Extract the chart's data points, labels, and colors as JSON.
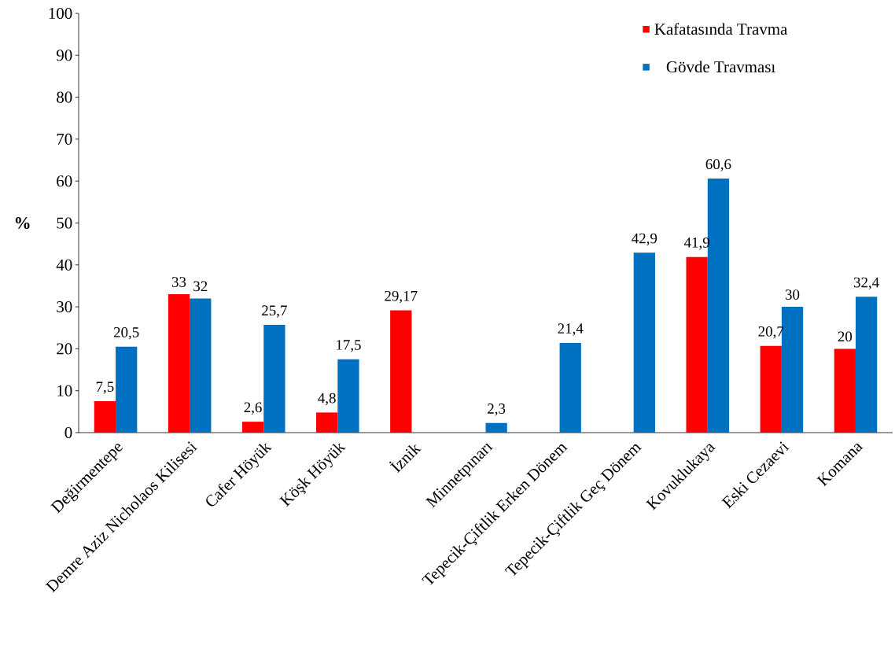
{
  "chart_data": {
    "type": "bar",
    "ylabel": "%",
    "categories": [
      "Değirmentepe",
      "Demre Aziz Nicholaos Kilisesi",
      "Cafer Höyük",
      "Köşk Höyük",
      "İznik",
      "Minnetpınarı",
      "Tepecik-Çiftlik Erken Dönem",
      "Tepecik-Çiftlik Geç Dönem",
      "Kovuklukaya",
      "Eski Cezaevi",
      "Komana"
    ],
    "series": [
      {
        "name": "Kafatasında Travma",
        "color": "#ff0000",
        "values": [
          7.5,
          33,
          2.6,
          4.8,
          29.17,
          null,
          null,
          null,
          41.9,
          20.7,
          20
        ],
        "value_labels": [
          "7,5",
          "33",
          "2,6",
          "4,8",
          "29,17",
          null,
          null,
          null,
          "41,9",
          "20,7",
          "20"
        ]
      },
      {
        "name": "Gövde Travması",
        "color": "#0070c0",
        "values": [
          20.5,
          32,
          25.7,
          17.5,
          null,
          2.3,
          21.4,
          42.9,
          60.6,
          30,
          32.4
        ],
        "value_labels": [
          "20,5",
          "32",
          "25,7",
          "17,5",
          null,
          "2,3",
          "21,4",
          "42,9",
          "60,6",
          "30",
          "32,4"
        ]
      }
    ],
    "ylim": [
      0,
      100
    ],
    "yticks": [
      0,
      10,
      20,
      30,
      40,
      50,
      60,
      70,
      80,
      90,
      100
    ],
    "grid": false,
    "legend": "top right"
  }
}
